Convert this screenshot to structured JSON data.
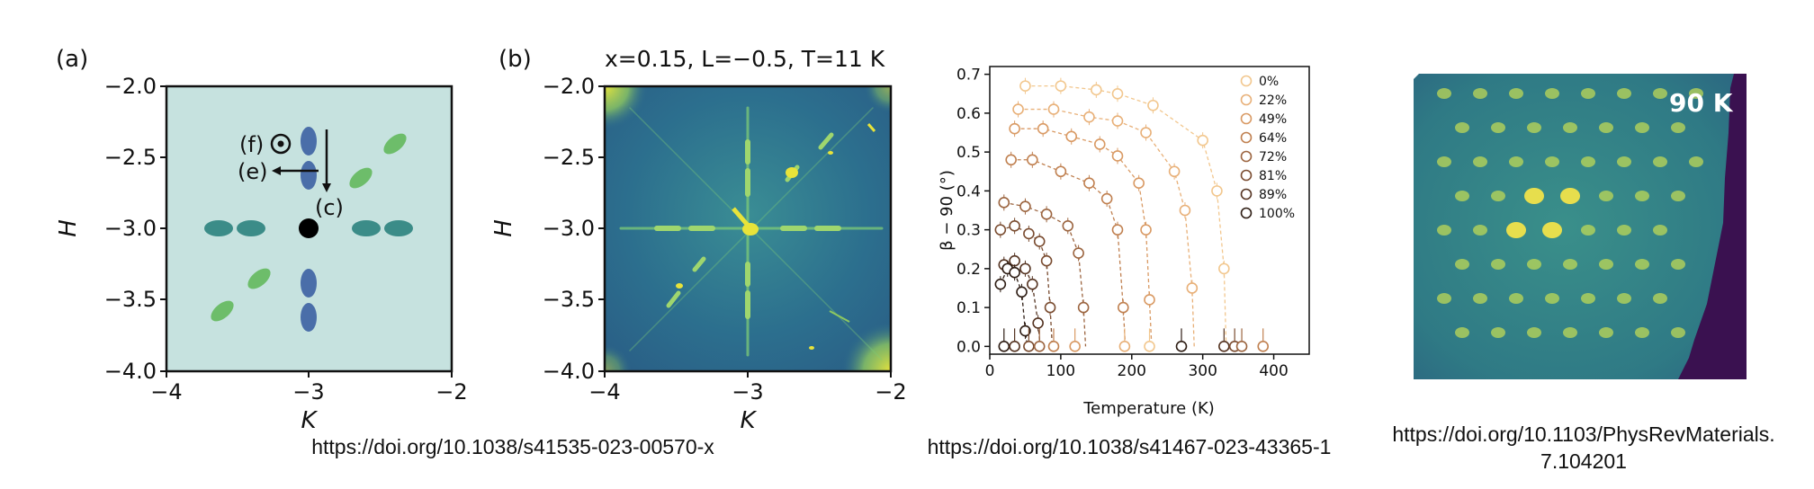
{
  "panel_a": {
    "label": "(a)",
    "xlabel": "K",
    "ylabel": "H",
    "xticks": [
      "−4",
      "−3",
      "−2"
    ],
    "yticks": [
      "−2.0",
      "−2.5",
      "−3.0",
      "−3.5",
      "−4.0"
    ],
    "annotations": {
      "f": "(f)",
      "e": "(e)",
      "c": "(c)"
    },
    "colors": {
      "background": "#c6e2df",
      "blue": "#4a6ea9",
      "teal": "#3b8c88",
      "green": "#6dbd6a",
      "center": "#000000"
    }
  },
  "panel_b": {
    "label": "(b)",
    "title": "x=0.15, L=−0.5, T=11 K",
    "xlabel": "K",
    "ylabel": "H",
    "xticks": [
      "−4",
      "−3",
      "−2"
    ],
    "yticks": [
      "−2.0",
      "−2.5",
      "−3.0",
      "−3.5",
      "−4.0"
    ],
    "colors": {
      "background": "#2c6f8e",
      "streak": "#7dcb78",
      "spot": "#e8e33a"
    }
  },
  "chart_data": {
    "type": "scatter",
    "xlabel": "Temperature (K)",
    "ylabel": "β − 90 (°)",
    "xlim": [
      0,
      450
    ],
    "ylim": [
      -0.02,
      0.72
    ],
    "xticks": [
      0,
      100,
      200,
      300,
      400
    ],
    "yticks": [
      0.0,
      0.1,
      0.2,
      0.3,
      0.4,
      0.5,
      0.6,
      0.7
    ],
    "legend_position": "top-right",
    "series": [
      {
        "name": "0%",
        "color": "#f2c78e",
        "x": [
          50,
          100,
          150,
          180,
          230,
          300,
          320,
          330
        ],
        "y": [
          0.67,
          0.67,
          0.66,
          0.65,
          0.62,
          0.53,
          0.4,
          0.2
        ]
      },
      {
        "name": "22%",
        "color": "#e8b078",
        "x": [
          40,
          90,
          140,
          180,
          220,
          260,
          275,
          285
        ],
        "y": [
          0.61,
          0.61,
          0.59,
          0.58,
          0.55,
          0.45,
          0.35,
          0.15
        ]
      },
      {
        "name": "49%",
        "color": "#d99a64",
        "x": [
          35,
          75,
          115,
          155,
          180,
          210,
          220,
          225
        ],
        "y": [
          0.56,
          0.56,
          0.54,
          0.52,
          0.49,
          0.42,
          0.3,
          0.12
        ]
      },
      {
        "name": "64%",
        "color": "#c08050",
        "x": [
          30,
          60,
          100,
          140,
          165,
          180,
          188
        ],
        "y": [
          0.48,
          0.48,
          0.45,
          0.42,
          0.38,
          0.3,
          0.1
        ]
      },
      {
        "name": "72%",
        "color": "#9c6540",
        "x": [
          20,
          50,
          80,
          110,
          125,
          132
        ],
        "y": [
          0.37,
          0.36,
          0.34,
          0.31,
          0.24,
          0.1
        ]
      },
      {
        "name": "81%",
        "color": "#7a4c30",
        "x": [
          15,
          35,
          55,
          70,
          80,
          85
        ],
        "y": [
          0.3,
          0.31,
          0.29,
          0.27,
          0.22,
          0.1
        ]
      },
      {
        "name": "89%",
        "color": "#553422",
        "x": [
          20,
          35,
          50,
          60,
          68
        ],
        "y": [
          0.21,
          0.22,
          0.2,
          0.16,
          0.06
        ]
      },
      {
        "name": "100%",
        "color": "#2e1d14",
        "x": [
          15,
          25,
          35,
          45,
          50
        ],
        "y": [
          0.16,
          0.2,
          0.19,
          0.14,
          0.04
        ]
      }
    ],
    "zero_points": [
      20,
      35,
      55,
      70,
      90,
      120,
      190,
      225,
      270,
      330,
      345,
      355,
      385
    ]
  },
  "panel_d": {
    "label": "90 K",
    "colors": {
      "background": "#2f7a85",
      "spot": "#c7de52",
      "bright": "#f0e34a",
      "edge": "#3a1150"
    }
  },
  "citations": {
    "left": "https://doi.org/10.1038/s41535-023-00570-x",
    "middle": "https://doi.org/10.1038/s41467-023-43365-1",
    "right_line1": "https://doi.org/10.1103/PhysRevMaterials.",
    "right_line2": "7.104201"
  }
}
